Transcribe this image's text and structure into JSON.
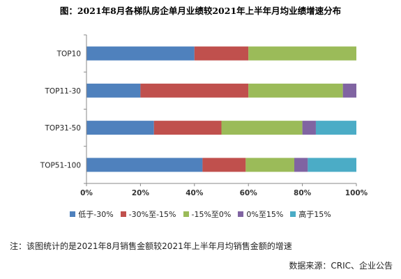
{
  "title": "图：2021年8月各梯队房企单月业绩较2021年上半年月均业绩增速分布",
  "note": "注：该图统计的是2021年8月销售金额较2021年上半年月均销售金额的增速",
  "source": "数据来源：CRIC、企业公告",
  "chart_data": {
    "type": "bar",
    "orientation": "horizontal",
    "stacked": "percent",
    "categories": [
      "TOP10",
      "TOP11-30",
      "TOP31-50",
      "TOP51-100"
    ],
    "xlim": [
      0,
      100
    ],
    "xticks": [
      "0%",
      "20%",
      "40%",
      "60%",
      "80%",
      "100%"
    ],
    "grid": false,
    "legend_position": "bottom",
    "series": [
      {
        "name": "低于-30%",
        "color": "#4f81bd",
        "values": [
          40,
          20,
          25,
          43
        ]
      },
      {
        "name": "-30%至-15%",
        "color": "#c0504d",
        "values": [
          20,
          40,
          25,
          16
        ]
      },
      {
        "name": "-15%至0%",
        "color": "#9bbb59",
        "values": [
          40,
          35,
          30,
          18
        ]
      },
      {
        "name": "0%至15%",
        "color": "#8064a2",
        "values": [
          0,
          5,
          5,
          5
        ]
      },
      {
        "name": "高于15%",
        "color": "#4bacc6",
        "values": [
          0,
          0,
          15,
          18
        ]
      }
    ]
  }
}
